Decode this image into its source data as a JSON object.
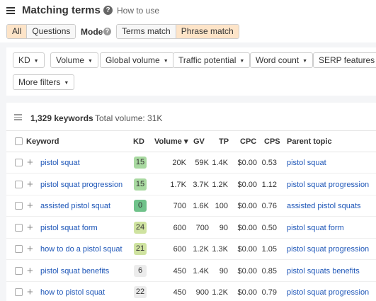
{
  "header": {
    "title": "Matching terms",
    "help_label": "How to use"
  },
  "toolbar": {
    "tabs": [
      {
        "label": "All",
        "active": true
      },
      {
        "label": "Questions",
        "active": false
      }
    ],
    "mode_label": "Mode",
    "modes": [
      {
        "label": "Terms match",
        "active": false
      },
      {
        "label": "Phrase match",
        "active": true
      }
    ]
  },
  "filters": [
    {
      "label": "KD"
    },
    {
      "label": "Volume"
    },
    {
      "label": "Global volume"
    },
    {
      "label": "Traffic potential"
    },
    {
      "label": "Word count"
    },
    {
      "label": "SERP features"
    },
    {
      "label": "More filters"
    }
  ],
  "summary": {
    "count": "1,329 keywords",
    "total": "Total volume: 31K"
  },
  "table": {
    "columns": [
      "Keyword",
      "KD",
      "Volume",
      "GV",
      "TP",
      "CPC",
      "CPS",
      "Parent topic"
    ],
    "sort_indicator": "▾",
    "rows": [
      {
        "keyword": "pistol squat",
        "kd": "15",
        "kd_color": "#a8d9a0",
        "volume": "20K",
        "gv": "59K",
        "tp": "1.4K",
        "cpc": "$0.00",
        "cps": "0.53",
        "parent": "pistol squat"
      },
      {
        "keyword": "pistol squat progression",
        "kd": "15",
        "kd_color": "#a8d9a0",
        "volume": "1.7K",
        "gv": "3.7K",
        "tp": "1.2K",
        "cpc": "$0.00",
        "cps": "1.12",
        "parent": "pistol squat progression"
      },
      {
        "keyword": "assisted pistol squat",
        "kd": "0",
        "kd_color": "#6fc28a",
        "volume": "700",
        "gv": "1.6K",
        "tp": "100",
        "cpc": "$0.00",
        "cps": "0.76",
        "parent": "assisted pistol squats"
      },
      {
        "keyword": "pistol squat form",
        "kd": "24",
        "kd_color": "#cfe3a0",
        "volume": "600",
        "gv": "700",
        "tp": "90",
        "cpc": "$0.00",
        "cps": "0.50",
        "parent": "pistol squat form"
      },
      {
        "keyword": "how to do a pistol squat",
        "kd": "21",
        "kd_color": "#cfe3a0",
        "volume": "600",
        "gv": "1.2K",
        "tp": "1.3K",
        "cpc": "$0.00",
        "cps": "1.05",
        "parent": "pistol squat progression"
      },
      {
        "keyword": "pistol squat benefits",
        "kd": "6",
        "kd_color": "#ececec",
        "volume": "450",
        "gv": "1.4K",
        "tp": "90",
        "cpc": "$0.00",
        "cps": "0.85",
        "parent": "pistol squats benefits"
      },
      {
        "keyword": "how to pistol squat",
        "kd": "22",
        "kd_color": "#ececec",
        "volume": "450",
        "gv": "900",
        "tp": "1.2K",
        "cpc": "$0.00",
        "cps": "0.79",
        "parent": "pistol squat progression"
      }
    ]
  }
}
